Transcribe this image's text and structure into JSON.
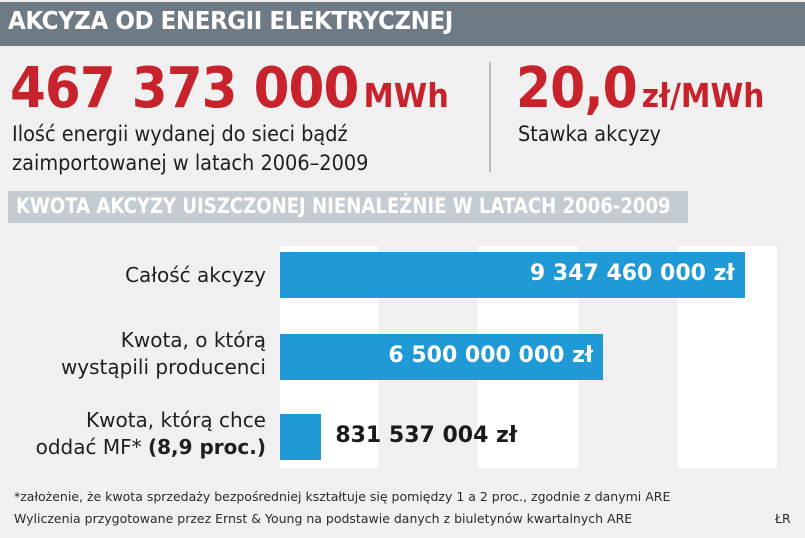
{
  "header": {
    "title": "AKCYZA OD ENERGII ELEKTRYCZNEJ"
  },
  "stats": {
    "energy": {
      "value": "467 373 000",
      "unit": "MWh",
      "desc_line1": "Ilość energii wydanej do sieci bądź",
      "desc_line2": "zaimportowanej w latach 2006–2009"
    },
    "rate": {
      "value": "20,0",
      "unit": "zł/MWh",
      "desc": "Stawka akcyzy"
    }
  },
  "chart_data": {
    "type": "bar",
    "orientation": "horizontal",
    "title": "KWOTA AKCYZY UISZCZONEJ NIENALEŻNIE W LATACH 2006-2009",
    "categories": [
      "Całość akcyzy",
      "Kwota, o którą wystąpili producenci",
      "Kwota, którą chce oddać MF* (8,9 proc.)"
    ],
    "category_lines": [
      [
        "Całość akcyzy"
      ],
      [
        "Kwota, o którą",
        "wystąpili producenci"
      ],
      [
        "Kwota, którą chce",
        "oddać MF*",
        "(8,9 proc.)"
      ]
    ],
    "values": [
      9347460000,
      6500000000,
      831537004
    ],
    "value_labels": [
      "9 347 460 000 zł",
      "6 500 000 000 zł",
      "831 537 004 zł"
    ],
    "xlim": [
      0,
      10000000000
    ],
    "grid": true,
    "bar_color": "#1f9ad6"
  },
  "footnotes": {
    "note1": "*założenie, że kwota sprzedaży bezpośredniej kształtuje się pomiędzy 1 a 2 proc., zgodnie z danymi ARE",
    "note2": "Wyliczenia przygotowane przez Ernst & Young na podstawie danych z biuletynów kwartalnych ARE",
    "credit": "ŁR"
  }
}
